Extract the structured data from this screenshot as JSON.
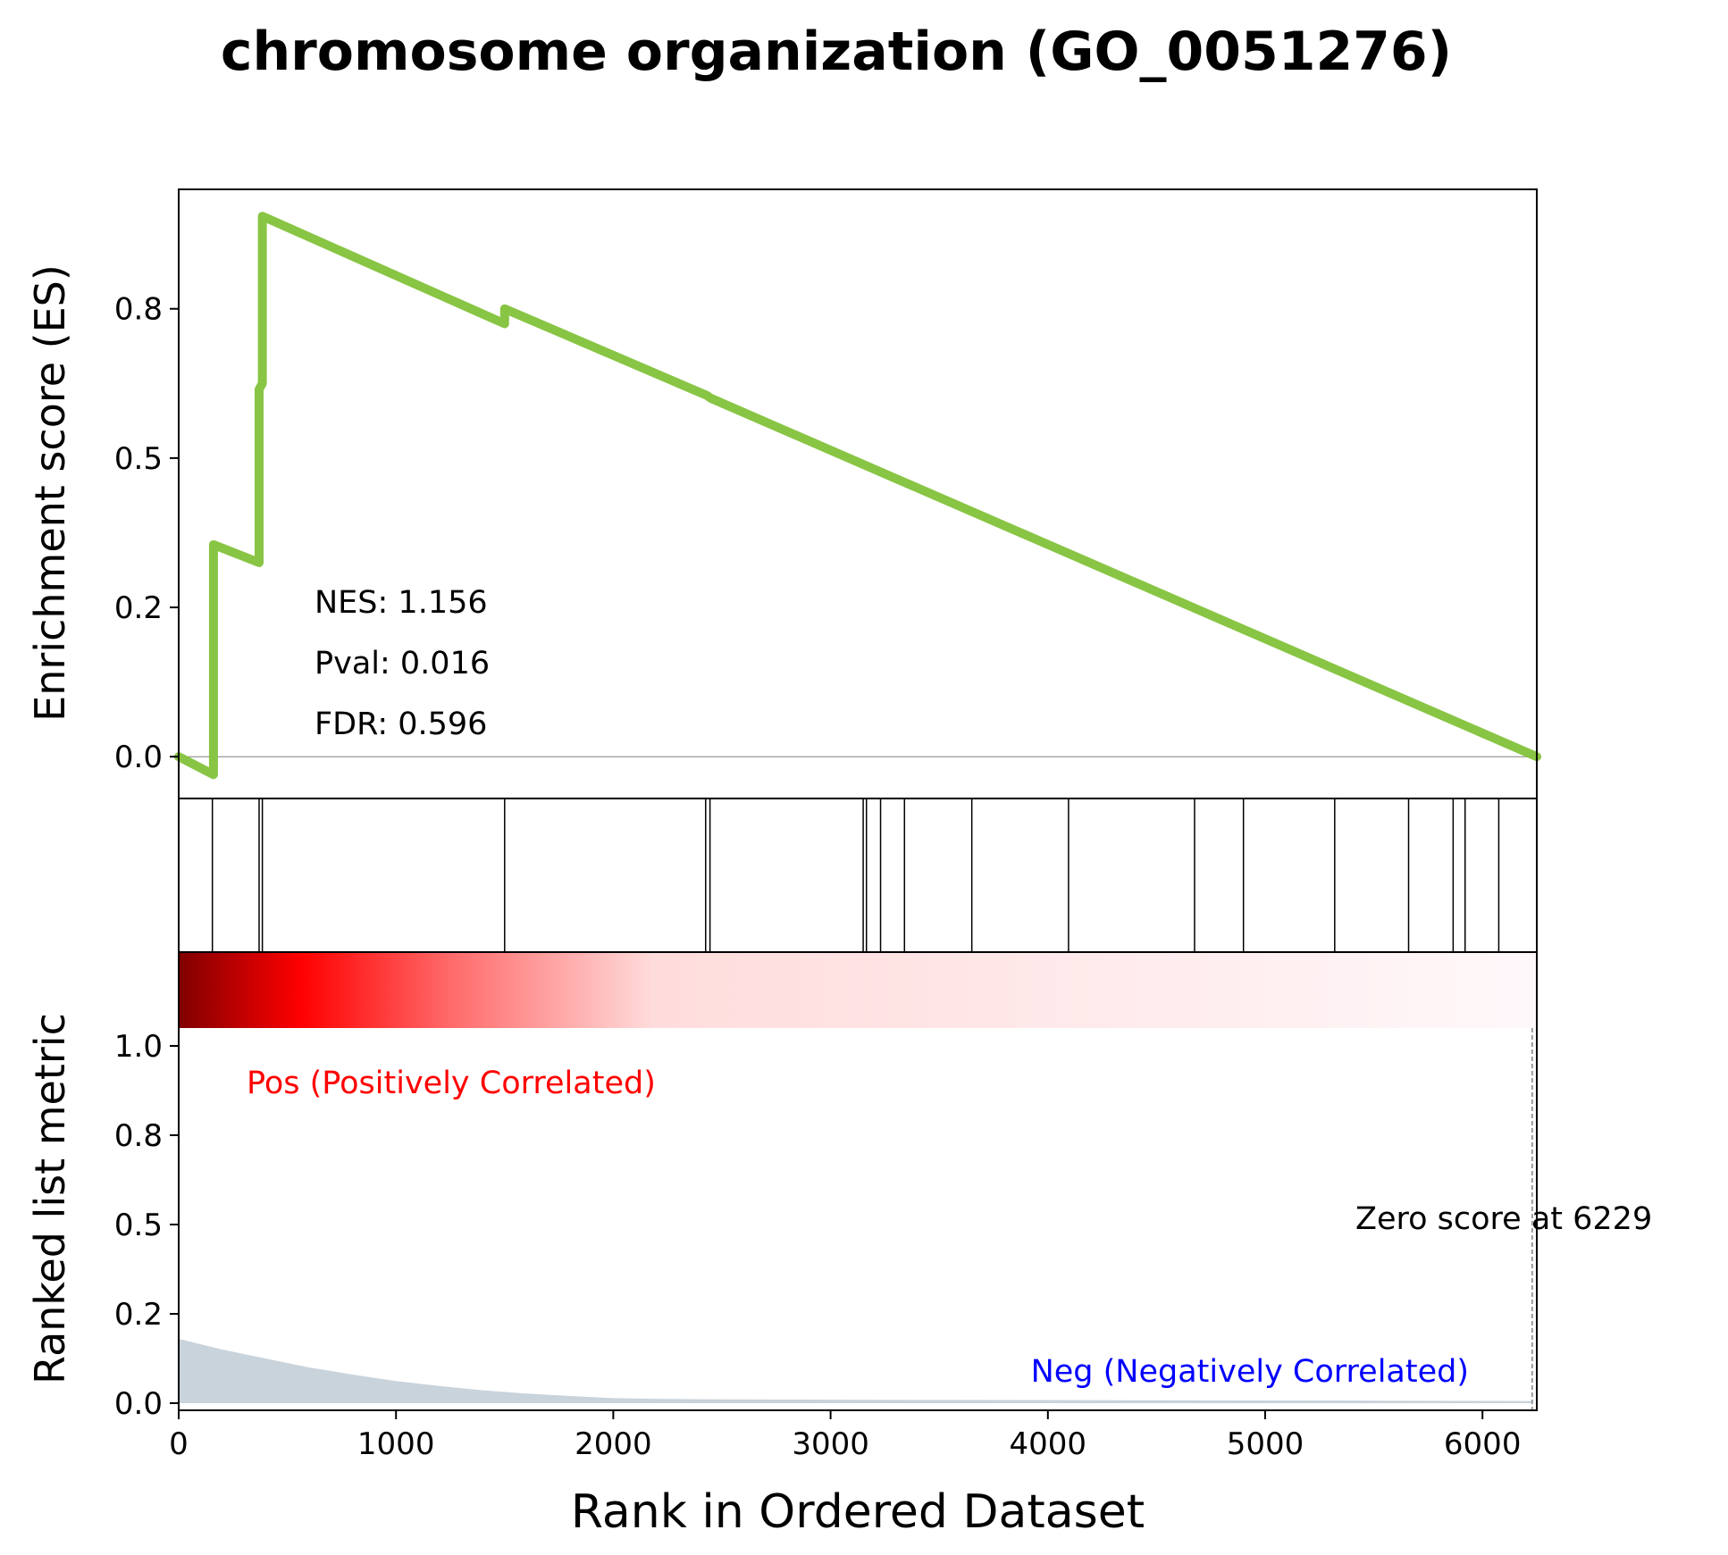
{
  "title": "chromosome organization (GO_0051276)",
  "colors": {
    "es_line": "#88C544",
    "hit_lines": "#000000",
    "metric_fill": "#C9D3DB",
    "pos_label": "#FF0000",
    "neg_label": "#0000FF",
    "zero_line": "#808080",
    "heat_dark": "#800000",
    "heat_red": "#FF0000",
    "heat_light": "#FFF8FA"
  },
  "chart_data": [
    {
      "type": "line",
      "ylabel": "Enrichment score (ES)",
      "xlim": [
        0,
        6250
      ],
      "ylim": [
        -0.07,
        0.95
      ],
      "yticks": [
        "0.0",
        "0.2",
        "0.5",
        "0.8"
      ],
      "ytick_values": [
        0.0,
        0.25,
        0.5,
        0.75
      ],
      "annotations": [
        "NES: 1.156",
        "Pval: 0.016",
        "FDR: 0.596"
      ],
      "series": [
        {
          "x": [
            0,
            160,
            160,
            370,
            370,
            385,
            385,
            1500,
            1500,
            2430,
            2450,
            6250
          ],
          "y": [
            0.0,
            -0.03,
            0.355,
            0.325,
            0.615,
            0.625,
            0.905,
            0.725,
            0.75,
            0.605,
            0.6,
            0.0
          ]
        }
      ]
    },
    {
      "type": "scatter",
      "name": "hits",
      "hits": [
        155,
        370,
        385,
        1500,
        2425,
        2445,
        3150,
        3165,
        3230,
        3340,
        3650,
        4095,
        4675,
        4900,
        5320,
        5660,
        5865,
        5920,
        6075
      ]
    },
    {
      "type": "area",
      "ylabel": "Ranked list metric",
      "xlabel": "Rank in Ordered Dataset",
      "xlim": [
        0,
        6250
      ],
      "ylim": [
        -0.02,
        1.05
      ],
      "xticks": [
        "0",
        "1000",
        "2000",
        "3000",
        "4000",
        "5000",
        "6000"
      ],
      "xtick_values": [
        0,
        1000,
        2000,
        3000,
        4000,
        5000,
        6000
      ],
      "yticks": [
        "0.0",
        "0.2",
        "0.5",
        "0.8",
        "1.0"
      ],
      "ytick_values": [
        0.0,
        0.25,
        0.5,
        0.75,
        1.0
      ],
      "x": [
        0,
        200,
        400,
        600,
        800,
        1000,
        1200,
        1400,
        1600,
        1800,
        2000,
        2200,
        2400,
        2800,
        3500,
        4500,
        5500,
        6229
      ],
      "y": [
        0.18,
        0.15,
        0.125,
        0.1,
        0.08,
        0.062,
        0.048,
        0.036,
        0.027,
        0.02,
        0.014,
        0.012,
        0.011,
        0.01,
        0.009,
        0.008,
        0.007,
        0.006
      ],
      "zero_score_label": "Zero score at 6229",
      "zero_score_x": 6229,
      "pos_label": "Pos (Positively Correlated)",
      "neg_label": "Neg (Negatively Correlated)"
    }
  ]
}
